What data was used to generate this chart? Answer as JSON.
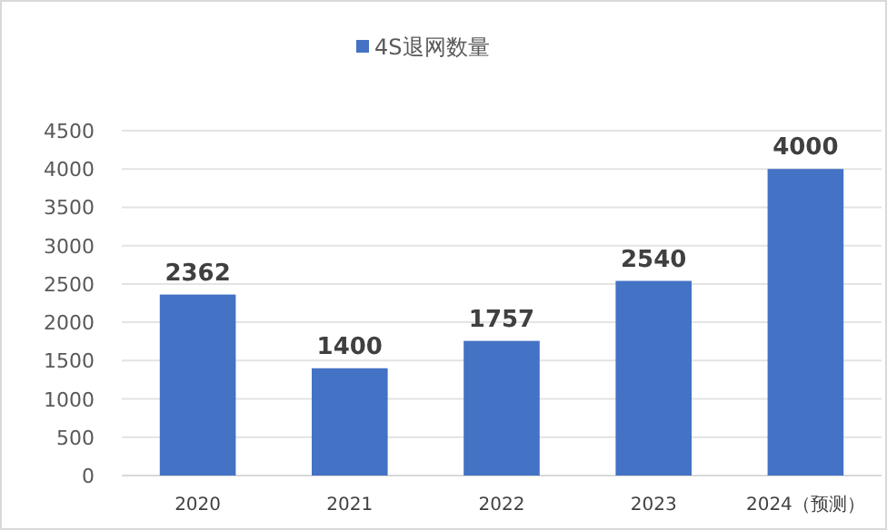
{
  "chart_data": {
    "type": "bar",
    "categories": [
      "2020",
      "2021",
      "2022",
      "2023",
      "2024（预测）"
    ],
    "series": [
      {
        "name": "4S退网数量",
        "color": "#4472c4",
        "values": [
          2362,
          1400,
          1757,
          2540,
          4000
        ]
      }
    ],
    "ylim": [
      0,
      4500
    ],
    "yticks": [
      0,
      500,
      1000,
      1500,
      2000,
      2500,
      3000,
      3500,
      4000,
      4500
    ],
    "grid": "y",
    "legend": "top",
    "data_labels": true
  }
}
